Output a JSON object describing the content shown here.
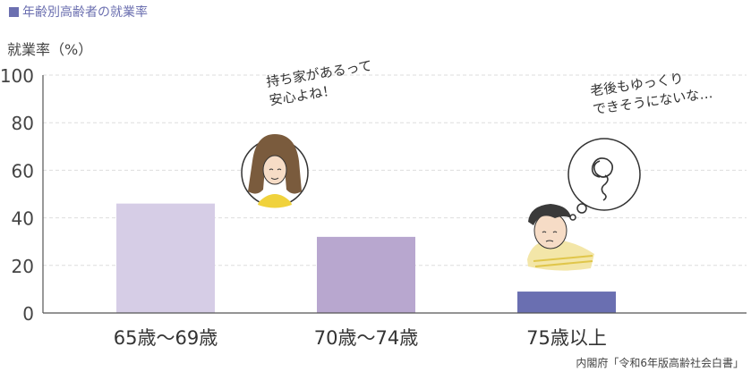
{
  "chart_data": {
    "type": "bar",
    "title": "年齢別高齢者の就業率",
    "ylabel": "就業率（%）",
    "xlabel": "",
    "categories": [
      "65歳～69歳",
      "70歳～74歳",
      "75歳以上"
    ],
    "values": [
      46,
      32,
      9
    ],
    "ylim": [
      0,
      100
    ],
    "yticks": [
      0,
      20,
      40,
      60,
      80,
      100
    ],
    "grid": true,
    "bar_colors": [
      "#d6cde6",
      "#b8a7cf",
      "#6a6fb1"
    ],
    "annotations": [
      "持ち家があるって\n安心よね！",
      "老後もゆっくり\nできそうにないな…"
    ]
  },
  "source": "内閣府「令和6年版高齢社会白書」",
  "colors": {
    "accent": "#6b6fb0",
    "axis": "#555555",
    "grid": "#dddddd"
  }
}
